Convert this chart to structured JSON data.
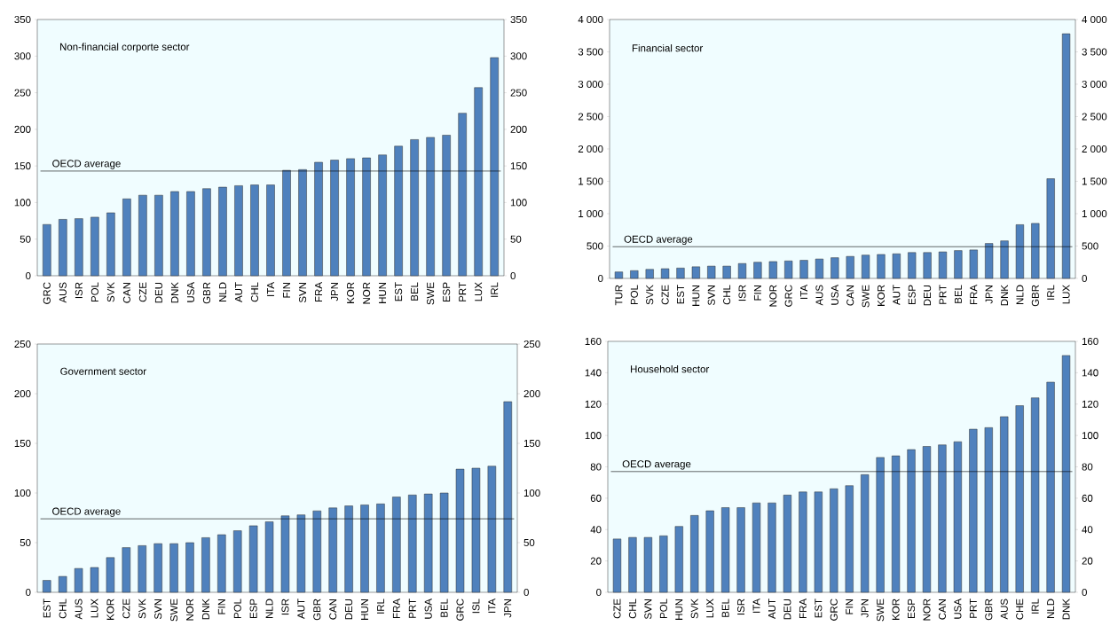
{
  "chart_data": [
    {
      "type": "bar",
      "title": "Non-financial corporte sector",
      "color": "#4f81bd",
      "categories": [
        "GRC",
        "AUS",
        "ISR",
        "POL",
        "SVK",
        "CAN",
        "CZE",
        "DEU",
        "DNK",
        "USA",
        "GBR",
        "NLD",
        "AUT",
        "CHL",
        "ITA",
        "FIN",
        "SVN",
        "FRA",
        "JPN",
        "KOR",
        "NOR",
        "HUN",
        "EST",
        "BEL",
        "SWE",
        "ESP",
        "PRT",
        "LUX",
        "IRL"
      ],
      "values": [
        70,
        77,
        78,
        80,
        86,
        105,
        110,
        110,
        115,
        115,
        119,
        121,
        123,
        124,
        124,
        144,
        145,
        155,
        158,
        160,
        161,
        165,
        177,
        186,
        189,
        192,
        222,
        257,
        298
      ],
      "ylim": [
        0,
        350
      ],
      "yticks": [
        0,
        50,
        100,
        150,
        200,
        250,
        300,
        350
      ],
      "y2lim": [
        0,
        350
      ],
      "y2ticks": [
        0,
        50,
        100,
        150,
        200,
        250,
        300,
        350
      ],
      "ref_lines": [
        {
          "axis": "y",
          "value": 143,
          "label": "OECD average"
        }
      ]
    },
    {
      "type": "bar",
      "title": "Financial sector",
      "color": "#4f81bd",
      "categories": [
        "TUR",
        "POL",
        "SVK",
        "CZE",
        "EST",
        "HUN",
        "SVN",
        "CHL",
        "ISR",
        "FIN",
        "NOR",
        "GRC",
        "ITA",
        "AUS",
        "USA",
        "CAN",
        "SWE",
        "KOR",
        "AUT",
        "ESP",
        "DEU",
        "PRT",
        "BEL",
        "FRA",
        "JPN",
        "DNK",
        "NLD",
        "GBR",
        "IRL",
        "LUX"
      ],
      "values": [
        100,
        120,
        140,
        150,
        160,
        180,
        190,
        190,
        230,
        250,
        260,
        270,
        280,
        300,
        320,
        340,
        360,
        370,
        380,
        400,
        400,
        410,
        430,
        440,
        540,
        580,
        830,
        850,
        1540,
        3780
      ],
      "ylim": [
        0,
        4000
      ],
      "yticks": [
        0,
        500,
        {
          "value": 1000,
          "label": "1 000"
        },
        {
          "value": 1500,
          "label": "1 500"
        },
        {
          "value": 2000,
          "label": "2 000"
        },
        {
          "value": 2500,
          "label": "2 500"
        },
        {
          "value": 3000,
          "label": "3 000"
        },
        {
          "value": 3500,
          "label": "3 500"
        },
        {
          "value": 4000,
          "label": "4 000"
        }
      ],
      "y2lim": [
        0,
        4000
      ],
      "y2ticks": [
        0,
        500,
        {
          "value": 1000,
          "label": "1 000"
        },
        {
          "value": 1500,
          "label": "1 500"
        },
        {
          "value": 2000,
          "label": "2 000"
        },
        {
          "value": 2500,
          "label": "2 500"
        },
        {
          "value": 3000,
          "label": "3 000"
        },
        {
          "value": 3500,
          "label": "3 500"
        },
        {
          "value": 4000,
          "label": "4 000"
        }
      ],
      "ref_lines": [
        {
          "axis": "y",
          "value": 490,
          "label": "OECD average"
        }
      ]
    },
    {
      "type": "bar",
      "title": "Government sector",
      "color": "#4f81bd",
      "categories": [
        "EST",
        "CHL",
        "AUS",
        "LUX",
        "KOR",
        "CZE",
        "SVK",
        "SVN",
        "SWE",
        "NOR",
        "DNK",
        "FIN",
        "POL",
        "ESP",
        "NLD",
        "ISR",
        "AUT",
        "GBR",
        "CAN",
        "DEU",
        "HUN",
        "IRL",
        "FRA",
        "PRT",
        "USA",
        "BEL",
        "GRC",
        "ISL",
        "ITA",
        "JPN"
      ],
      "values": [
        12,
        16,
        24,
        25,
        35,
        45,
        47,
        49,
        49,
        50,
        55,
        58,
        62,
        67,
        71,
        77,
        78,
        82,
        85,
        87,
        88,
        89,
        96,
        98,
        99,
        100,
        124,
        125,
        127,
        192
      ],
      "ylim": [
        0,
        250
      ],
      "yticks": [
        0,
        50,
        100,
        150,
        200,
        250
      ],
      "y2lim": [
        0,
        250
      ],
      "y2ticks": [
        0,
        50,
        100,
        150,
        200,
        250
      ],
      "ref_lines": [
        {
          "axis": "y",
          "value": 74,
          "label": "OECD average"
        }
      ]
    },
    {
      "type": "bar",
      "title": "Household sector",
      "color": "#4f81bd",
      "categories": [
        "CZE",
        "CHL",
        "SVN",
        "POL",
        "HUN",
        "SVK",
        "LUX",
        "BEL",
        "ISR",
        "ITA",
        "AUT",
        "DEU",
        "FRA",
        "EST",
        "GRC",
        "FIN",
        "JPN",
        "SWE",
        "KOR",
        "ESP",
        "NOR",
        "CAN",
        "USA",
        "PRT",
        "GBR",
        "AUS",
        "CHE",
        "IRL",
        "NLD",
        "DNK"
      ],
      "values": [
        34,
        35,
        35,
        36,
        42,
        49,
        52,
        54,
        54,
        57,
        57,
        62,
        64,
        64,
        66,
        68,
        75,
        86,
        87,
        91,
        93,
        94,
        96,
        104,
        105,
        112,
        119,
        124,
        134,
        151
      ],
      "ylim": [
        0,
        160
      ],
      "yticks": [
        0,
        20,
        40,
        60,
        80,
        100,
        120,
        140,
        160
      ],
      "y2lim": [
        0,
        160
      ],
      "y2ticks": [
        0,
        20,
        40,
        60,
        80,
        100,
        120,
        140,
        160
      ],
      "ref_lines": [
        {
          "axis": "y",
          "value": 77,
          "label": "OECD average"
        }
      ]
    }
  ]
}
